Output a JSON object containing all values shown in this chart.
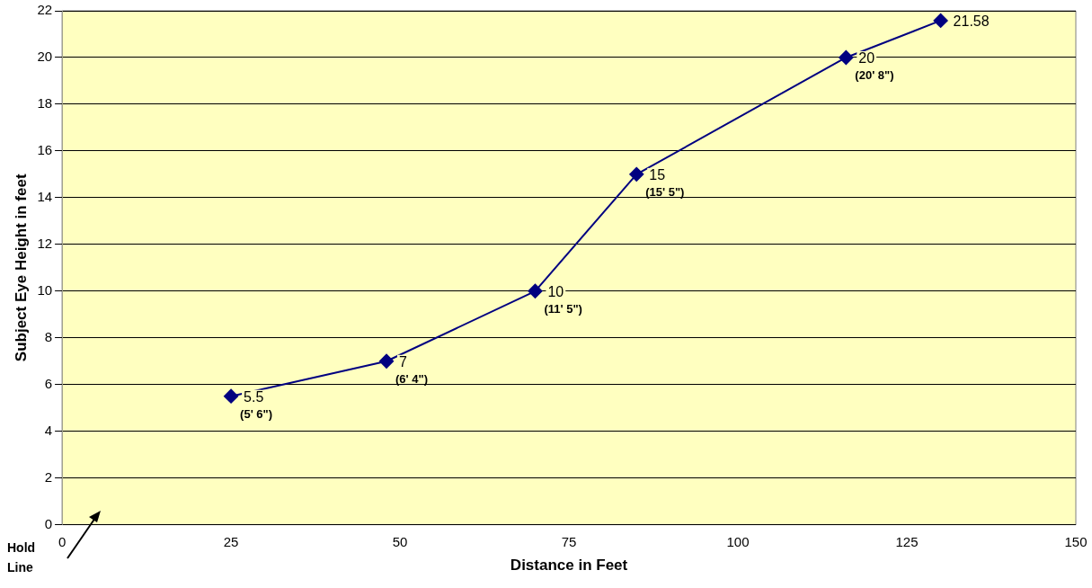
{
  "chart_data": {
    "type": "line",
    "xlabel": "Distance in Feet",
    "ylabel": "Subject Eye Height in feet",
    "x": [
      25,
      48,
      70,
      85,
      116,
      130
    ],
    "series": [
      {
        "color": "#000080",
        "values": [
          5.5,
          7,
          10,
          15,
          20,
          21.58
        ]
      }
    ],
    "xlim": [
      0,
      150
    ],
    "xticks": [
      0,
      25,
      50,
      75,
      100,
      125,
      150
    ],
    "ylim": [
      0,
      22
    ],
    "yticks": [
      0,
      2,
      4,
      6,
      8,
      10,
      12,
      14,
      16,
      18,
      20,
      22
    ],
    "grid": "y",
    "legend": false,
    "marker": "diamond",
    "line_style": "solid",
    "data_labels": true,
    "annotations": [
      {
        "text": "(5' 6\")",
        "x": 25,
        "y": 5.5
      },
      {
        "text": "(6' 4\")",
        "x": 48,
        "y": 7
      },
      {
        "text": "(11' 5\")",
        "x": 70,
        "y": 10
      },
      {
        "text": "(15' 5\")",
        "x": 85,
        "y": 15
      },
      {
        "text": "(20' 8\")",
        "x": 116,
        "y": 20
      },
      "Hold Line"
    ]
  }
}
